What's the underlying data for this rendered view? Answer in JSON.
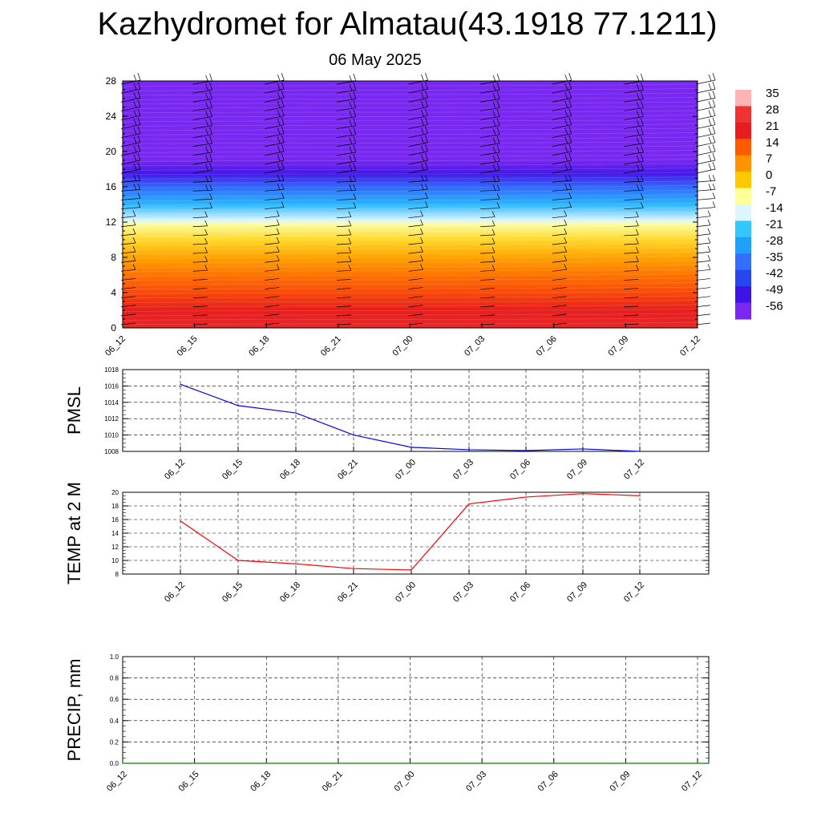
{
  "title": "Kazhydromet for Almatau(43.1918 77.1211)",
  "subtitle": "06 May 2025",
  "chart_data": [
    {
      "type": "heatmap",
      "x_ticks": [
        "06_12",
        "06_15",
        "06_18",
        "06_21",
        "07_00",
        "07_03",
        "07_06",
        "07_09",
        "07_12"
      ],
      "y_ticks": [
        0,
        4,
        8,
        12,
        16,
        20,
        24,
        28
      ],
      "ylim": [
        0,
        28
      ],
      "temperature_profile": [
        {
          "y": 0,
          "t": 24
        },
        {
          "y": 2,
          "t": 21
        },
        {
          "y": 4,
          "t": 16
        },
        {
          "y": 6,
          "t": 11
        },
        {
          "y": 8,
          "t": 5
        },
        {
          "y": 10,
          "t": -2
        },
        {
          "y": 11.8,
          "t": -8
        },
        {
          "y": 12.2,
          "t": -14
        },
        {
          "y": 14,
          "t": -24
        },
        {
          "y": 16,
          "t": -36
        },
        {
          "y": 17.5,
          "t": -50
        },
        {
          "y": 19,
          "t": -57
        },
        {
          "y": 21,
          "t": -60
        },
        {
          "y": 23,
          "t": -62
        },
        {
          "y": 28,
          "t": -62
        }
      ],
      "colorbar": {
        "labels": [
          "35",
          "28",
          "21",
          "14",
          "7",
          "0",
          "-7",
          "-14",
          "-21",
          "-28",
          "-35",
          "-42",
          "-49",
          "-56"
        ],
        "colors": [
          "#ffb4b4",
          "#f03232",
          "#e61e1e",
          "#ff5a00",
          "#ff9400",
          "#ffc800",
          "#ffff96",
          "#dcf5ff",
          "#32c8ff",
          "#1ea0ff",
          "#326eff",
          "#2846f0",
          "#3c14e6",
          "#7828f0"
        ]
      },
      "wind_barbs": true
    },
    {
      "type": "line",
      "ylabel": "PMSL",
      "categories": [
        "06_12",
        "06_15",
        "06_18",
        "06_21",
        "07_00",
        "07_03",
        "07_06",
        "07_09",
        "07_12"
      ],
      "values": [
        1016.2,
        1013.6,
        1012.7,
        1010.0,
        1008.5,
        1008.2,
        1008.1,
        1008.3,
        1008.0
      ],
      "y_ticks": [
        1008,
        1010,
        1012,
        1014,
        1016,
        1018
      ],
      "ylim": [
        1008,
        1018
      ],
      "color": "#0000ff",
      "grid": true
    },
    {
      "type": "line",
      "ylabel": "TEMP at 2 M",
      "categories": [
        "06_12",
        "06_15",
        "06_18",
        "06_21",
        "07_00",
        "07_03",
        "07_06",
        "07_09",
        "07_12"
      ],
      "values": [
        15.8,
        10.0,
        9.5,
        8.8,
        8.6,
        18.3,
        19.3,
        19.8,
        19.5
      ],
      "y_ticks": [
        8,
        10,
        12,
        14,
        16,
        18,
        20
      ],
      "ylim": [
        8,
        20
      ],
      "color": "#ff0000",
      "grid": true
    },
    {
      "type": "line",
      "ylabel": "PRECIP, mm",
      "categories": [
        "06_12",
        "06_15",
        "06_18",
        "06_21",
        "07_00",
        "07_03",
        "07_06",
        "07_09",
        "07_12"
      ],
      "values": [
        0,
        0,
        0,
        0,
        0,
        0,
        0,
        0,
        0
      ],
      "y_ticks": [
        "0.0",
        "0.2",
        "0.4",
        "0.6",
        "0.8",
        "1.0"
      ],
      "ylim": [
        0,
        1
      ],
      "color": "#008000",
      "grid": true
    }
  ]
}
